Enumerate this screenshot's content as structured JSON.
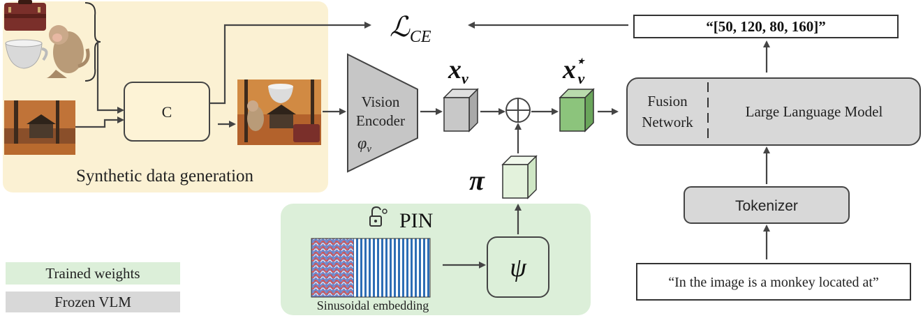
{
  "synth": {
    "compose_label": "C",
    "section_label": "Synthetic data generation"
  },
  "loss": {
    "label": "ℒ",
    "sub": "CE"
  },
  "encoder": {
    "line1": "Vision",
    "line2": "Encoder",
    "param": "φ",
    "param_sub": "v"
  },
  "features": {
    "xv": "x",
    "xv_sub": "v",
    "xvstar": "x",
    "xvstar_sub": "v",
    "xvstar_sup": "⋆",
    "pi": "π"
  },
  "pin": {
    "title": "PIN",
    "embedding_label": "Sinusoidal embedding",
    "psi": "ψ"
  },
  "llm": {
    "fusion_line1": "Fusion",
    "fusion_line2": "Network",
    "label": "Large Language Model"
  },
  "tokenizer": {
    "label": "Tokenizer"
  },
  "prompt": {
    "text": "“In the image is a monkey located at”"
  },
  "output": {
    "text": "“[50, 120, 80, 160]”"
  },
  "legend": {
    "trained": "Trained weights",
    "frozen": "Frozen VLM"
  },
  "colors": {
    "synth_bg": "#fbf1d3",
    "trained": "#dcefd9",
    "frozen": "#d8d8d8",
    "cube_gray": "#c8c8c8",
    "cube_green": "#8cc47c",
    "cube_lightgreen": "#e3f2dc",
    "arrow": "#444444"
  }
}
